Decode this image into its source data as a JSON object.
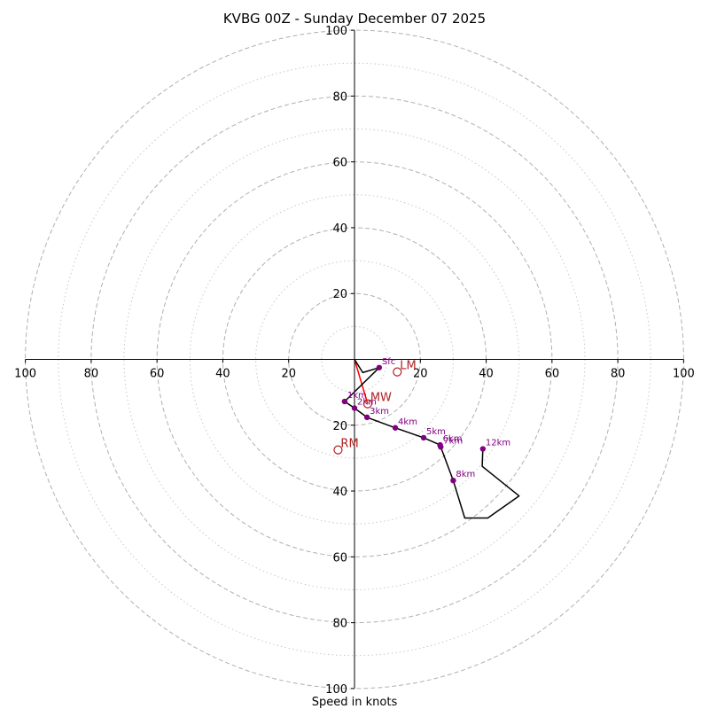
{
  "chart_data": {
    "type": "hodograph",
    "title": "KVBG 00Z - Sunday December 07 2025",
    "xlabel": "Speed in knots",
    "units": "knots",
    "range": [
      -100,
      100
    ],
    "ring_major": [
      20,
      40,
      60,
      80,
      100
    ],
    "ring_minor": [
      10,
      30,
      50,
      70,
      90
    ],
    "tick_values": [
      20,
      40,
      60,
      80,
      100
    ],
    "grid": true,
    "colors": {
      "hodograph_line": "#000000",
      "height_marker": "#800080",
      "height_label": "#800080",
      "storm_motion": "#b22222",
      "shear_vector": "#ff0000",
      "grid_major": "#b0b0b0",
      "grid_minor": "#c8c8c8"
    },
    "hodograph_trace": [
      [
        0,
        0
      ],
      [
        2.5,
        -4
      ],
      [
        7.5,
        -2.5
      ],
      [
        -3,
        -12.8
      ],
      [
        0,
        -14.8
      ],
      [
        3.8,
        -17.6
      ],
      [
        12.4,
        -20.8
      ],
      [
        21,
        -23.8
      ],
      [
        26,
        -26
      ],
      [
        26.2,
        -26.6
      ],
      [
        30,
        -36.8
      ],
      [
        33.5,
        -48.2
      ],
      [
        40.5,
        -48.2
      ],
      [
        50,
        -41.5
      ],
      [
        38.8,
        -32.5
      ],
      [
        39,
        -27.2
      ]
    ],
    "height_markers": [
      {
        "label": "Sfc",
        "u": 7.5,
        "v": -2.5
      },
      {
        "label": "1km",
        "u": -3,
        "v": -12.8
      },
      {
        "label": "2km",
        "u": 0,
        "v": -14.8
      },
      {
        "label": "3km",
        "u": 3.8,
        "v": -17.6
      },
      {
        "label": "4km",
        "u": 12.4,
        "v": -20.8
      },
      {
        "label": "5km",
        "u": 21,
        "v": -23.8
      },
      {
        "label": "6km",
        "u": 26,
        "v": -26
      },
      {
        "label": "7km",
        "u": 26.2,
        "v": -26.6
      },
      {
        "label": "8km",
        "u": 30,
        "v": -36.8
      },
      {
        "label": "12km",
        "u": 39,
        "v": -27.2
      }
    ],
    "storm_motion": [
      {
        "label": "LM",
        "u": 13,
        "v": -3.8
      },
      {
        "label": "MW",
        "u": 4,
        "v": -13.5
      },
      {
        "label": "RM",
        "u": -5,
        "v": -27.5
      }
    ],
    "shear_vector": [
      [
        0,
        0
      ],
      [
        4,
        -13.5
      ]
    ]
  }
}
